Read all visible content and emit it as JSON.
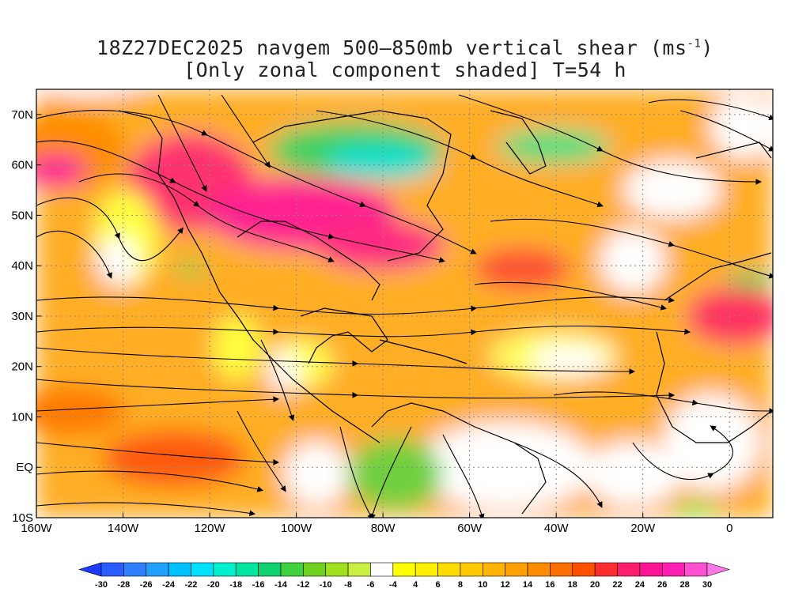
{
  "title": {
    "line1_prefix": "18Z27DEC2025 navgem 500–850mb vertical shear (ms",
    "line1_sup": "-1",
    "line1_suffix": ")",
    "line2": "[Only zonal component shaded] T=54 h"
  },
  "map": {
    "lon_range": [
      -160,
      10
    ],
    "lat_range": [
      -10,
      75
    ],
    "lat_ticks": [
      {
        "value": 70,
        "label": "70N"
      },
      {
        "value": 60,
        "label": "60N"
      },
      {
        "value": 50,
        "label": "50N"
      },
      {
        "value": 40,
        "label": "40N"
      },
      {
        "value": 30,
        "label": "30N"
      },
      {
        "value": 20,
        "label": "20N"
      },
      {
        "value": 10,
        "label": "10N"
      },
      {
        "value": 0,
        "label": "EQ"
      },
      {
        "value": -10,
        "label": "10S"
      }
    ],
    "lon_ticks": [
      {
        "value": -160,
        "label": "160W"
      },
      {
        "value": -140,
        "label": "140W"
      },
      {
        "value": -120,
        "label": "120W"
      },
      {
        "value": -100,
        "label": "100W"
      },
      {
        "value": -80,
        "label": "80W"
      },
      {
        "value": -60,
        "label": "60W"
      },
      {
        "value": -40,
        "label": "40W"
      },
      {
        "value": -20,
        "label": "20W"
      },
      {
        "value": 0,
        "label": "0"
      }
    ],
    "grid": "dotted"
  },
  "colorbar": {
    "levels": [
      "-30",
      "-28",
      "-26",
      "-24",
      "-22",
      "-20",
      "-18",
      "-16",
      "-14",
      "-12",
      "-10",
      "-8",
      "-6",
      "-4",
      "4",
      "6",
      "8",
      "10",
      "12",
      "14",
      "16",
      "18",
      "20",
      "22",
      "24",
      "26",
      "28",
      "30"
    ],
    "colors": [
      "#1e3cff",
      "#2a5cff",
      "#2f7fff",
      "#1fa0ff",
      "#00c0ff",
      "#00e0ff",
      "#00f0d0",
      "#00e6a0",
      "#10d070",
      "#40d040",
      "#70d020",
      "#a0e020",
      "#c8f040",
      "#ffffff",
      "#ffff00",
      "#fff000",
      "#ffdc00",
      "#ffc800",
      "#ffb400",
      "#ffa000",
      "#ff8c00",
      "#ff6e00",
      "#ff5000",
      "#ff2d2d",
      "#ff1e6e",
      "#ff1496",
      "#ff1eb4",
      "#ff50d2",
      "#ff78e6"
    ]
  }
}
